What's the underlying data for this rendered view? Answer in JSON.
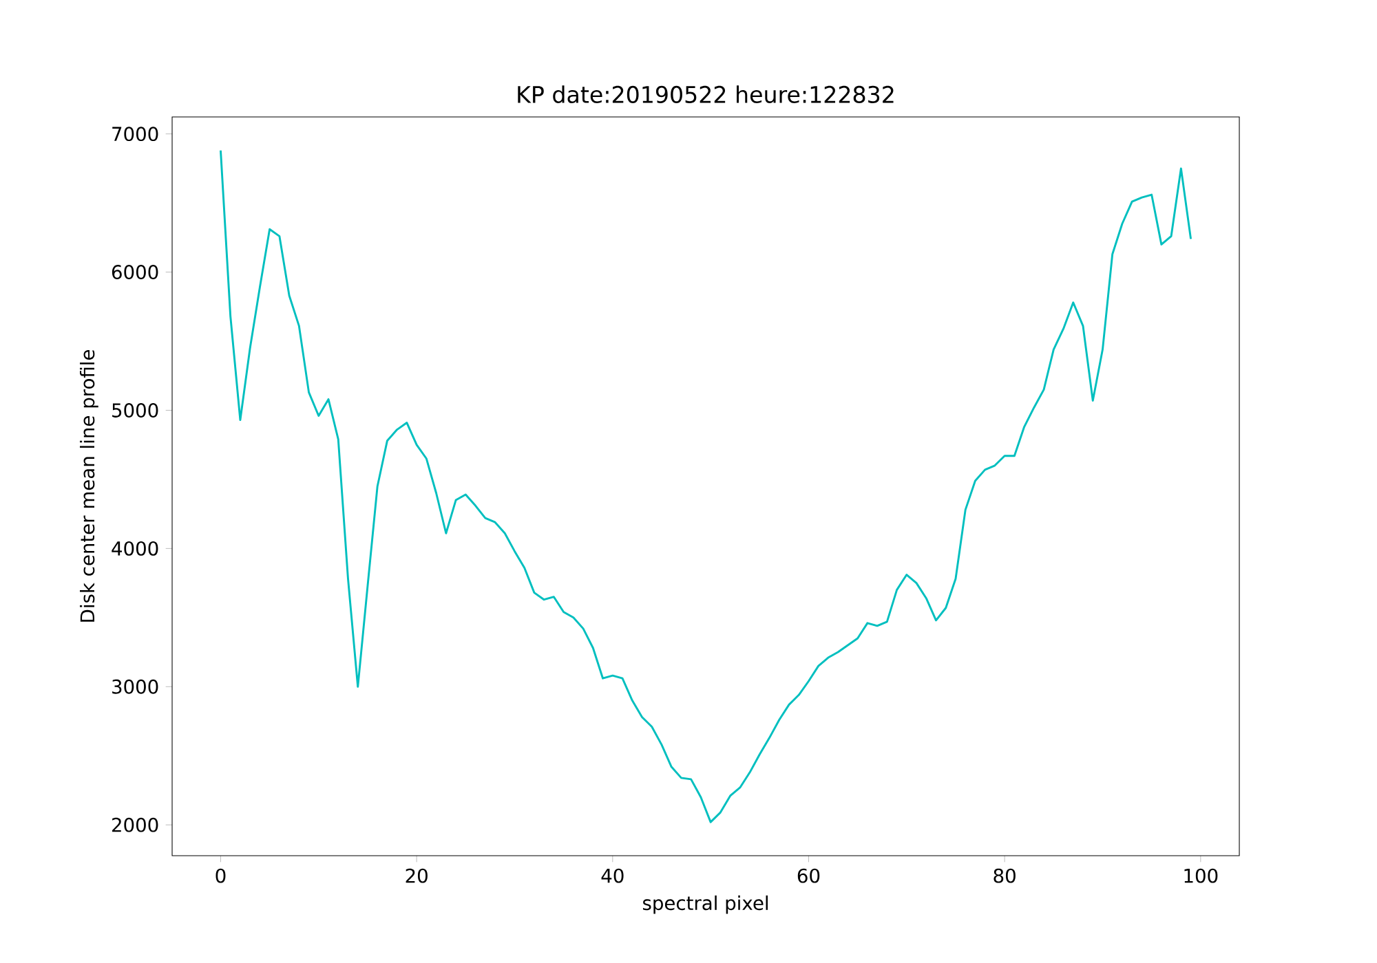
{
  "chart_data": {
    "type": "line",
    "title": "KP date:20190522 heure:122832",
    "xlabel": "spectral pixel",
    "ylabel": "Disk center mean line profile",
    "x": [
      0,
      1,
      2,
      3,
      4,
      5,
      6,
      7,
      8,
      9,
      10,
      11,
      12,
      13,
      14,
      15,
      16,
      17,
      18,
      19,
      20,
      21,
      22,
      23,
      24,
      25,
      26,
      27,
      28,
      29,
      30,
      31,
      32,
      33,
      34,
      35,
      36,
      37,
      38,
      39,
      40,
      41,
      42,
      43,
      44,
      45,
      46,
      47,
      48,
      49,
      50,
      51,
      52,
      53,
      54,
      55,
      56,
      57,
      58,
      59,
      60,
      61,
      62,
      63,
      64,
      65,
      66,
      67,
      68,
      69,
      70,
      71,
      72,
      73,
      74,
      75,
      76,
      77,
      78,
      79,
      80,
      81,
      82,
      83,
      84,
      85,
      86,
      87,
      88,
      89,
      90,
      91,
      92,
      93,
      94,
      95,
      96,
      97,
      98,
      99
    ],
    "series": [
      {
        "color": "#00bfbf",
        "values": [
          6880,
          5680,
          4930,
          5450,
          5890,
          6310,
          6260,
          5830,
          5610,
          5130,
          4960,
          5080,
          4790,
          3780,
          3000,
          3730,
          4450,
          4780,
          4860,
          4910,
          4750,
          4650,
          4400,
          4110,
          4350,
          4390,
          4310,
          4220,
          4190,
          4110,
          3980,
          3860,
          3680,
          3630,
          3650,
          3540,
          3500,
          3420,
          3280,
          3060,
          3080,
          3060,
          2900,
          2780,
          2710,
          2580,
          2420,
          2340,
          2330,
          2200,
          2020,
          2090,
          2210,
          2270,
          2380,
          2510,
          2630,
          2760,
          2870,
          2940,
          3040,
          3150,
          3210,
          3250,
          3300,
          3350,
          3460,
          3440,
          3470,
          3700,
          3810,
          3750,
          3640,
          3480,
          3570,
          3780,
          4280,
          4490,
          4570,
          4600,
          4670,
          4670,
          4880,
          5020,
          5150,
          5440,
          5590,
          5780,
          5610,
          5070,
          5440,
          6130,
          6350,
          6510,
          6540,
          6560,
          6200,
          6260,
          6750,
          6240
        ]
      }
    ],
    "xlim": [
      -4.95,
      103.95
    ],
    "ylim": [
      1777,
      7123
    ],
    "xticks": [
      0,
      20,
      40,
      60,
      80,
      100
    ],
    "yticks": [
      2000,
      3000,
      4000,
      5000,
      6000,
      7000
    ],
    "grid": false
  }
}
